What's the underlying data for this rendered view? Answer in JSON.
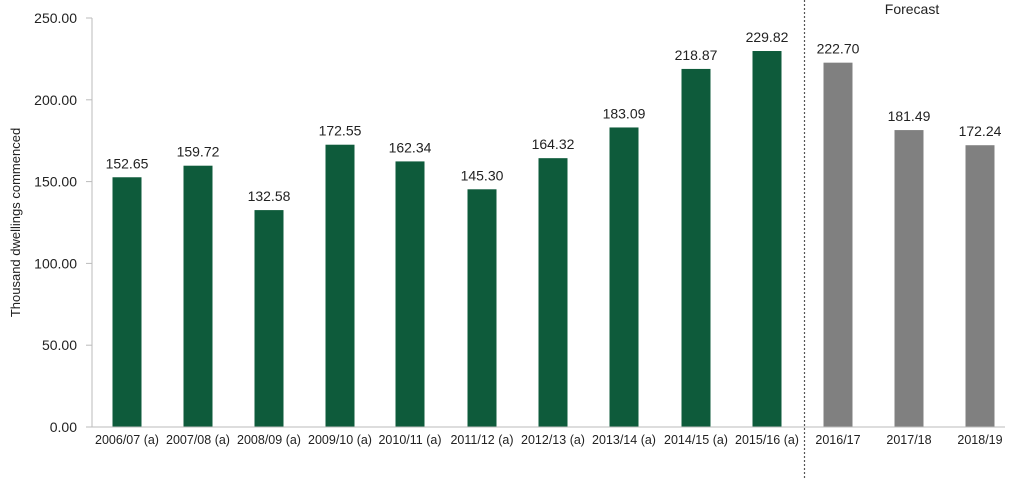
{
  "chart_data": {
    "type": "bar",
    "ylabel": "Thousand dwellings commenced",
    "ylim": [
      0,
      250
    ],
    "yticks": [
      "0.00",
      "50.00",
      "100.00",
      "150.00",
      "200.00",
      "250.00"
    ],
    "categories": [
      "2006/07 (a)",
      "2007/08 (a)",
      "2008/09 (a)",
      "2009/10 (a)",
      "2010/11 (a)",
      "2011/12 (a)",
      "2012/13 (a)",
      "2013/14 (a)",
      "2014/15 (a)",
      "2015/16 (a)",
      "2016/17",
      "2017/18",
      "2018/19"
    ],
    "values": [
      152.65,
      159.72,
      132.58,
      172.55,
      162.34,
      145.3,
      164.32,
      183.09,
      218.87,
      229.82,
      222.7,
      181.49,
      172.24
    ],
    "value_labels": [
      "152.65",
      "159.72",
      "132.58",
      "172.55",
      "162.34",
      "145.30",
      "164.32",
      "183.09",
      "218.87",
      "229.82",
      "222.70",
      "181.49",
      "172.24"
    ],
    "forecast_start_index": 10,
    "forecast_label": "Forecast",
    "colors": {
      "actual": "#0e5b3b",
      "forecast": "#808080",
      "divider": "#555555"
    },
    "grid": false,
    "legend": "none"
  }
}
